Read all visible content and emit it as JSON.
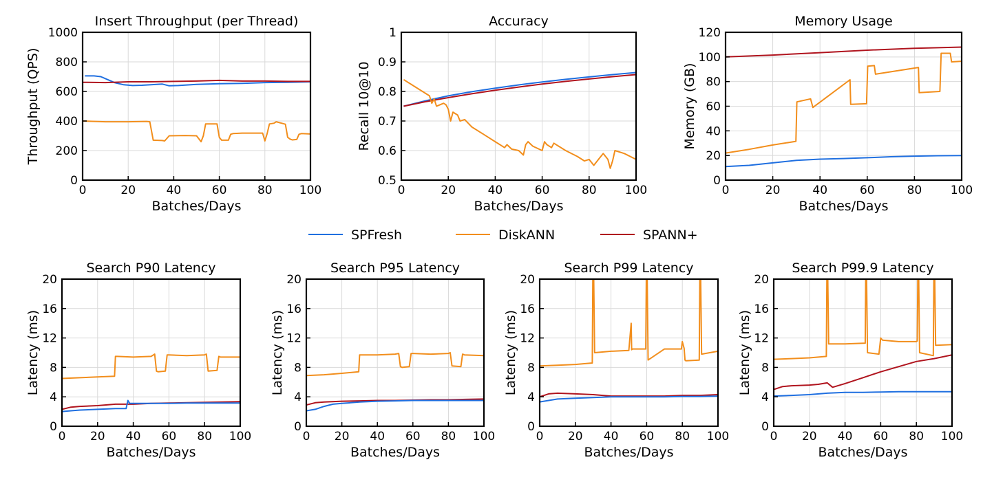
{
  "colors": {
    "SPFresh": "#1f6fe0",
    "DiskANN": "#f28e1c",
    "SPANN+": "#b0141e"
  },
  "legend": [
    {
      "name": "SPFresh",
      "color": "#1f6fe0"
    },
    {
      "name": "DiskANN",
      "color": "#f28e1c"
    },
    {
      "name": "SPANN+",
      "color": "#b0141e"
    }
  ],
  "chart_data": [
    {
      "type": "line",
      "title": "Insert Throughput (per Thread)",
      "xlabel": "Batches/Days",
      "ylabel": "Throughput (QPS)",
      "xlim": [
        0,
        100
      ],
      "ylim": [
        0,
        1000
      ],
      "xticks": [
        0,
        20,
        40,
        60,
        80,
        100
      ],
      "yticks": [
        0,
        200,
        400,
        600,
        800,
        1000
      ],
      "grid": true,
      "series": [
        {
          "name": "SPFresh",
          "x": [
            1,
            5,
            8,
            11,
            14,
            18,
            22,
            26,
            30,
            35,
            38,
            42,
            50,
            60,
            70,
            80,
            90,
            100
          ],
          "y": [
            705,
            705,
            700,
            680,
            660,
            645,
            640,
            642,
            645,
            650,
            638,
            640,
            648,
            652,
            655,
            660,
            662,
            665
          ]
        },
        {
          "name": "SPANN+",
          "x": [
            0,
            10,
            20,
            30,
            40,
            50,
            60,
            70,
            80,
            90,
            100
          ],
          "y": [
            662,
            660,
            665,
            665,
            668,
            670,
            675,
            670,
            670,
            668,
            668
          ]
        },
        {
          "name": "DiskANN",
          "x": [
            0,
            10,
            20,
            28,
            29.5,
            31,
            35,
            36,
            38,
            45,
            50,
            52,
            53,
            54,
            59,
            60,
            61,
            64,
            65,
            66,
            70,
            79,
            80,
            81,
            82,
            84,
            85,
            89,
            90,
            91,
            92,
            94,
            95,
            96,
            100
          ],
          "y": [
            400,
            395,
            395,
            397,
            395,
            270,
            268,
            265,
            300,
            302,
            300,
            260,
            300,
            380,
            380,
            290,
            270,
            270,
            310,
            315,
            318,
            318,
            265,
            315,
            380,
            385,
            395,
            378,
            290,
            278,
            272,
            275,
            310,
            315,
            312
          ]
        }
      ]
    },
    {
      "type": "line",
      "title": "Accuracy",
      "xlabel": "Batches/Days",
      "ylabel": "Recall 10@10",
      "xlim": [
        0,
        100
      ],
      "ylim": [
        0.5,
        1
      ],
      "xticks": [
        0,
        20,
        40,
        60,
        80,
        100
      ],
      "yticks": [
        0.5,
        0.6,
        0.7,
        0.8,
        0.9,
        1
      ],
      "ytick_labels": [
        "0.5",
        "0.6",
        "0.7",
        "0.8",
        "0.9",
        "1"
      ],
      "grid": true,
      "series": [
        {
          "name": "SPFresh",
          "x": [
            1,
            10,
            20,
            30,
            40,
            50,
            60,
            70,
            80,
            90,
            100
          ],
          "y": [
            0.75,
            0.768,
            0.785,
            0.799,
            0.811,
            0.822,
            0.832,
            0.841,
            0.849,
            0.857,
            0.864
          ]
        },
        {
          "name": "SPANN+",
          "x": [
            1,
            10,
            20,
            30,
            40,
            50,
            60,
            70,
            80,
            90,
            100
          ],
          "y": [
            0.75,
            0.765,
            0.779,
            0.792,
            0.804,
            0.815,
            0.825,
            0.834,
            0.842,
            0.85,
            0.857
          ]
        },
        {
          "name": "DiskANN",
          "x": [
            1,
            5,
            10,
            12,
            13,
            14,
            15,
            18,
            19,
            20,
            21,
            22,
            24,
            25,
            27,
            30,
            35,
            38,
            40,
            44,
            45,
            47,
            50,
            52,
            53,
            54,
            56,
            60,
            61,
            62,
            64,
            65,
            70,
            75,
            78,
            80,
            82,
            84,
            86,
            88,
            89,
            90,
            91,
            95,
            100
          ],
          "y": [
            0.84,
            0.82,
            0.795,
            0.785,
            0.76,
            0.775,
            0.75,
            0.76,
            0.755,
            0.74,
            0.7,
            0.73,
            0.72,
            0.7,
            0.705,
            0.68,
            0.655,
            0.64,
            0.63,
            0.61,
            0.62,
            0.605,
            0.6,
            0.585,
            0.62,
            0.63,
            0.615,
            0.6,
            0.63,
            0.62,
            0.61,
            0.625,
            0.6,
            0.58,
            0.565,
            0.57,
            0.55,
            0.57,
            0.59,
            0.57,
            0.54,
            0.565,
            0.6,
            0.59,
            0.57
          ]
        }
      ]
    },
    {
      "type": "line",
      "title": "Memory Usage",
      "xlabel": "Batches/Days",
      "ylabel": "Memory (GB)",
      "xlim": [
        0,
        100
      ],
      "ylim": [
        0,
        120
      ],
      "xticks": [
        0,
        20,
        40,
        60,
        80,
        100
      ],
      "yticks": [
        0,
        20,
        40,
        60,
        80,
        100,
        120
      ],
      "grid": true,
      "series": [
        {
          "name": "SPFresh",
          "x": [
            0,
            10,
            20,
            30,
            40,
            50,
            60,
            70,
            80,
            90,
            100
          ],
          "y": [
            11,
            12,
            14,
            16,
            17,
            17.5,
            18.2,
            19,
            19.5,
            19.8,
            20
          ]
        },
        {
          "name": "SPANN+",
          "x": [
            0,
            20,
            40,
            60,
            80,
            100
          ],
          "y": [
            100,
            101.5,
            103.5,
            105.5,
            107,
            108
          ]
        },
        {
          "name": "DiskANN",
          "x": [
            0,
            10,
            20,
            29.8,
            30.2,
            36,
            37,
            52.7,
            53,
            59.7,
            60.2,
            63,
            63.5,
            81.7,
            82,
            90.8,
            91.3,
            95.2,
            95.7,
            100
          ],
          "y": [
            22,
            25,
            28.5,
            31.5,
            63.5,
            66,
            59,
            81.5,
            61.5,
            62,
            92.5,
            93,
            86,
            91.5,
            71,
            72,
            103,
            103,
            96,
            96.5
          ]
        }
      ]
    },
    {
      "type": "line",
      "title": "Search P90 Latency",
      "xlabel": "Batches/Days",
      "ylabel": "Latency (ms)",
      "xlim": [
        0,
        100
      ],
      "ylim": [
        0,
        20
      ],
      "xticks": [
        0,
        20,
        40,
        60,
        80,
        100
      ],
      "yticks": [
        0,
        4,
        8,
        12,
        16,
        20
      ],
      "grid": true,
      "series": [
        {
          "name": "DiskANN",
          "x": [
            0,
            10,
            20,
            29.5,
            30,
            31,
            40,
            50,
            52,
            53,
            54,
            58,
            59,
            60,
            70,
            80,
            81,
            82,
            87,
            88,
            89,
            100
          ],
          "y": [
            6.5,
            6.6,
            6.7,
            6.8,
            9.5,
            9.5,
            9.4,
            9.5,
            9.8,
            7.5,
            7.4,
            7.5,
            9.7,
            9.7,
            9.6,
            9.7,
            9.8,
            7.5,
            7.6,
            9.5,
            9.4,
            9.4
          ]
        },
        {
          "name": "SPANN+",
          "x": [
            0,
            5,
            10,
            20,
            30,
            40,
            50,
            60,
            70,
            80,
            90,
            100
          ],
          "y": [
            2.3,
            2.6,
            2.7,
            2.8,
            3,
            3,
            3.1,
            3.15,
            3.2,
            3.25,
            3.3,
            3.35
          ]
        },
        {
          "name": "SPFresh",
          "x": [
            0,
            5,
            10,
            20,
            30,
            36,
            37,
            38,
            40,
            50,
            60,
            70,
            80,
            90,
            100
          ],
          "y": [
            2,
            2.1,
            2.2,
            2.3,
            2.4,
            2.4,
            3.5,
            3.1,
            3.1,
            3.1,
            3.1,
            3.15,
            3.15,
            3.15,
            3.15
          ]
        }
      ]
    },
    {
      "type": "line",
      "title": "Search P95 Latency",
      "xlabel": "Batches/Days",
      "ylabel": "Latency (ms)",
      "xlim": [
        0,
        100
      ],
      "ylim": [
        0,
        20
      ],
      "xticks": [
        0,
        20,
        40,
        60,
        80,
        100
      ],
      "yticks": [
        0,
        4,
        8,
        12,
        16,
        20
      ],
      "grid": true,
      "series": [
        {
          "name": "DiskANN",
          "x": [
            0,
            10,
            20,
            29.5,
            30,
            31,
            40,
            50,
            52,
            53,
            54,
            58,
            59,
            60,
            70,
            80,
            81,
            82,
            87,
            88,
            89,
            100
          ],
          "y": [
            6.9,
            7,
            7.2,
            7.4,
            9.7,
            9.7,
            9.7,
            9.8,
            9.9,
            8.1,
            8,
            8.1,
            9.9,
            9.9,
            9.8,
            9.9,
            10,
            8.2,
            8.1,
            9.8,
            9.7,
            9.6
          ]
        },
        {
          "name": "SPANN+",
          "x": [
            0,
            5,
            10,
            20,
            30,
            40,
            50,
            60,
            70,
            80,
            90,
            100
          ],
          "y": [
            2.9,
            3.2,
            3.3,
            3.4,
            3.45,
            3.5,
            3.5,
            3.55,
            3.6,
            3.6,
            3.65,
            3.7
          ]
        },
        {
          "name": "SPFresh",
          "x": [
            0,
            5,
            10,
            15,
            20,
            25,
            30,
            40,
            50,
            60,
            70,
            80,
            90,
            100
          ],
          "y": [
            2.1,
            2.3,
            2.7,
            3,
            3.1,
            3.2,
            3.3,
            3.4,
            3.45,
            3.5,
            3.5,
            3.5,
            3.5,
            3.5
          ]
        }
      ]
    },
    {
      "type": "line",
      "title": "Search P99 Latency",
      "xlabel": "Batches/Days",
      "ylabel": "Latency (ms)",
      "xlim": [
        0,
        100
      ],
      "ylim": [
        0,
        20
      ],
      "xticks": [
        0,
        20,
        40,
        60,
        80,
        100
      ],
      "yticks": [
        0,
        4,
        8,
        12,
        16,
        20
      ],
      "grid": true,
      "series": [
        {
          "name": "DiskANN",
          "x": [
            0,
            10,
            20,
            29.5,
            29.8,
            30.3,
            30.8,
            40,
            50,
            51.3,
            51.6,
            52,
            59.5,
            59.8,
            60.3,
            60.8,
            70,
            79.5,
            80,
            81,
            81.5,
            82,
            89.5,
            89.8,
            90.3,
            90.8,
            100
          ],
          "y": [
            8.2,
            8.3,
            8.4,
            8.6,
            20,
            20,
            10,
            10.2,
            10.3,
            14,
            10.4,
            10.5,
            10.5,
            20,
            20,
            9,
            10.5,
            10.5,
            11.5,
            10.6,
            9,
            8.9,
            9,
            20,
            20,
            9.8,
            10.2
          ]
        },
        {
          "name": "SPANN+",
          "x": [
            0,
            5,
            10,
            20,
            30,
            40,
            50,
            60,
            70,
            80,
            90,
            100
          ],
          "y": [
            4,
            4.4,
            4.5,
            4.4,
            4.3,
            4.1,
            4.1,
            4.1,
            4.1,
            4.2,
            4.2,
            4.3
          ]
        },
        {
          "name": "SPFresh",
          "x": [
            0,
            5,
            10,
            20,
            30,
            40,
            50,
            60,
            70,
            80,
            90,
            100
          ],
          "y": [
            3.3,
            3.5,
            3.7,
            3.8,
            3.9,
            4,
            4,
            4,
            4,
            4.05,
            4.05,
            4.1
          ]
        }
      ]
    },
    {
      "type": "line",
      "title": "Search P99.9 Latency",
      "xlabel": "Batches/Days",
      "ylabel": "Latency (ms)",
      "xlim": [
        0,
        100
      ],
      "ylim": [
        0,
        20
      ],
      "xticks": [
        0,
        20,
        40,
        60,
        80,
        100
      ],
      "yticks": [
        0,
        4,
        8,
        12,
        16,
        20
      ],
      "grid": true,
      "series": [
        {
          "name": "DiskANN",
          "x": [
            0,
            10,
            20,
            29.5,
            29.8,
            30.3,
            30.8,
            40,
            51.3,
            51.6,
            52.1,
            52.6,
            59,
            60,
            61,
            70,
            80,
            80.5,
            80.8,
            81.3,
            81.8,
            89.5,
            89.8,
            90.3,
            90.8,
            100
          ],
          "y": [
            9.1,
            9.2,
            9.3,
            9.5,
            20,
            20,
            11.2,
            11.2,
            11.3,
            20,
            20,
            10,
            9.8,
            12,
            11.7,
            11.5,
            11.5,
            11.6,
            20,
            20,
            10,
            9.6,
            20,
            20,
            11,
            11.1
          ]
        },
        {
          "name": "SPANN+",
          "x": [
            0,
            5,
            10,
            20,
            25,
            30,
            33,
            40,
            50,
            60,
            70,
            80,
            90,
            100
          ],
          "y": [
            5,
            5.4,
            5.5,
            5.6,
            5.7,
            5.9,
            5.3,
            5.8,
            6.6,
            7.4,
            8.1,
            8.8,
            9.2,
            9.7
          ]
        },
        {
          "name": "SPFresh",
          "x": [
            0,
            10,
            20,
            30,
            40,
            50,
            60,
            70,
            80,
            90,
            100
          ],
          "y": [
            4.1,
            4.2,
            4.3,
            4.5,
            4.6,
            4.6,
            4.65,
            4.7,
            4.7,
            4.7,
            4.7
          ]
        }
      ]
    }
  ]
}
